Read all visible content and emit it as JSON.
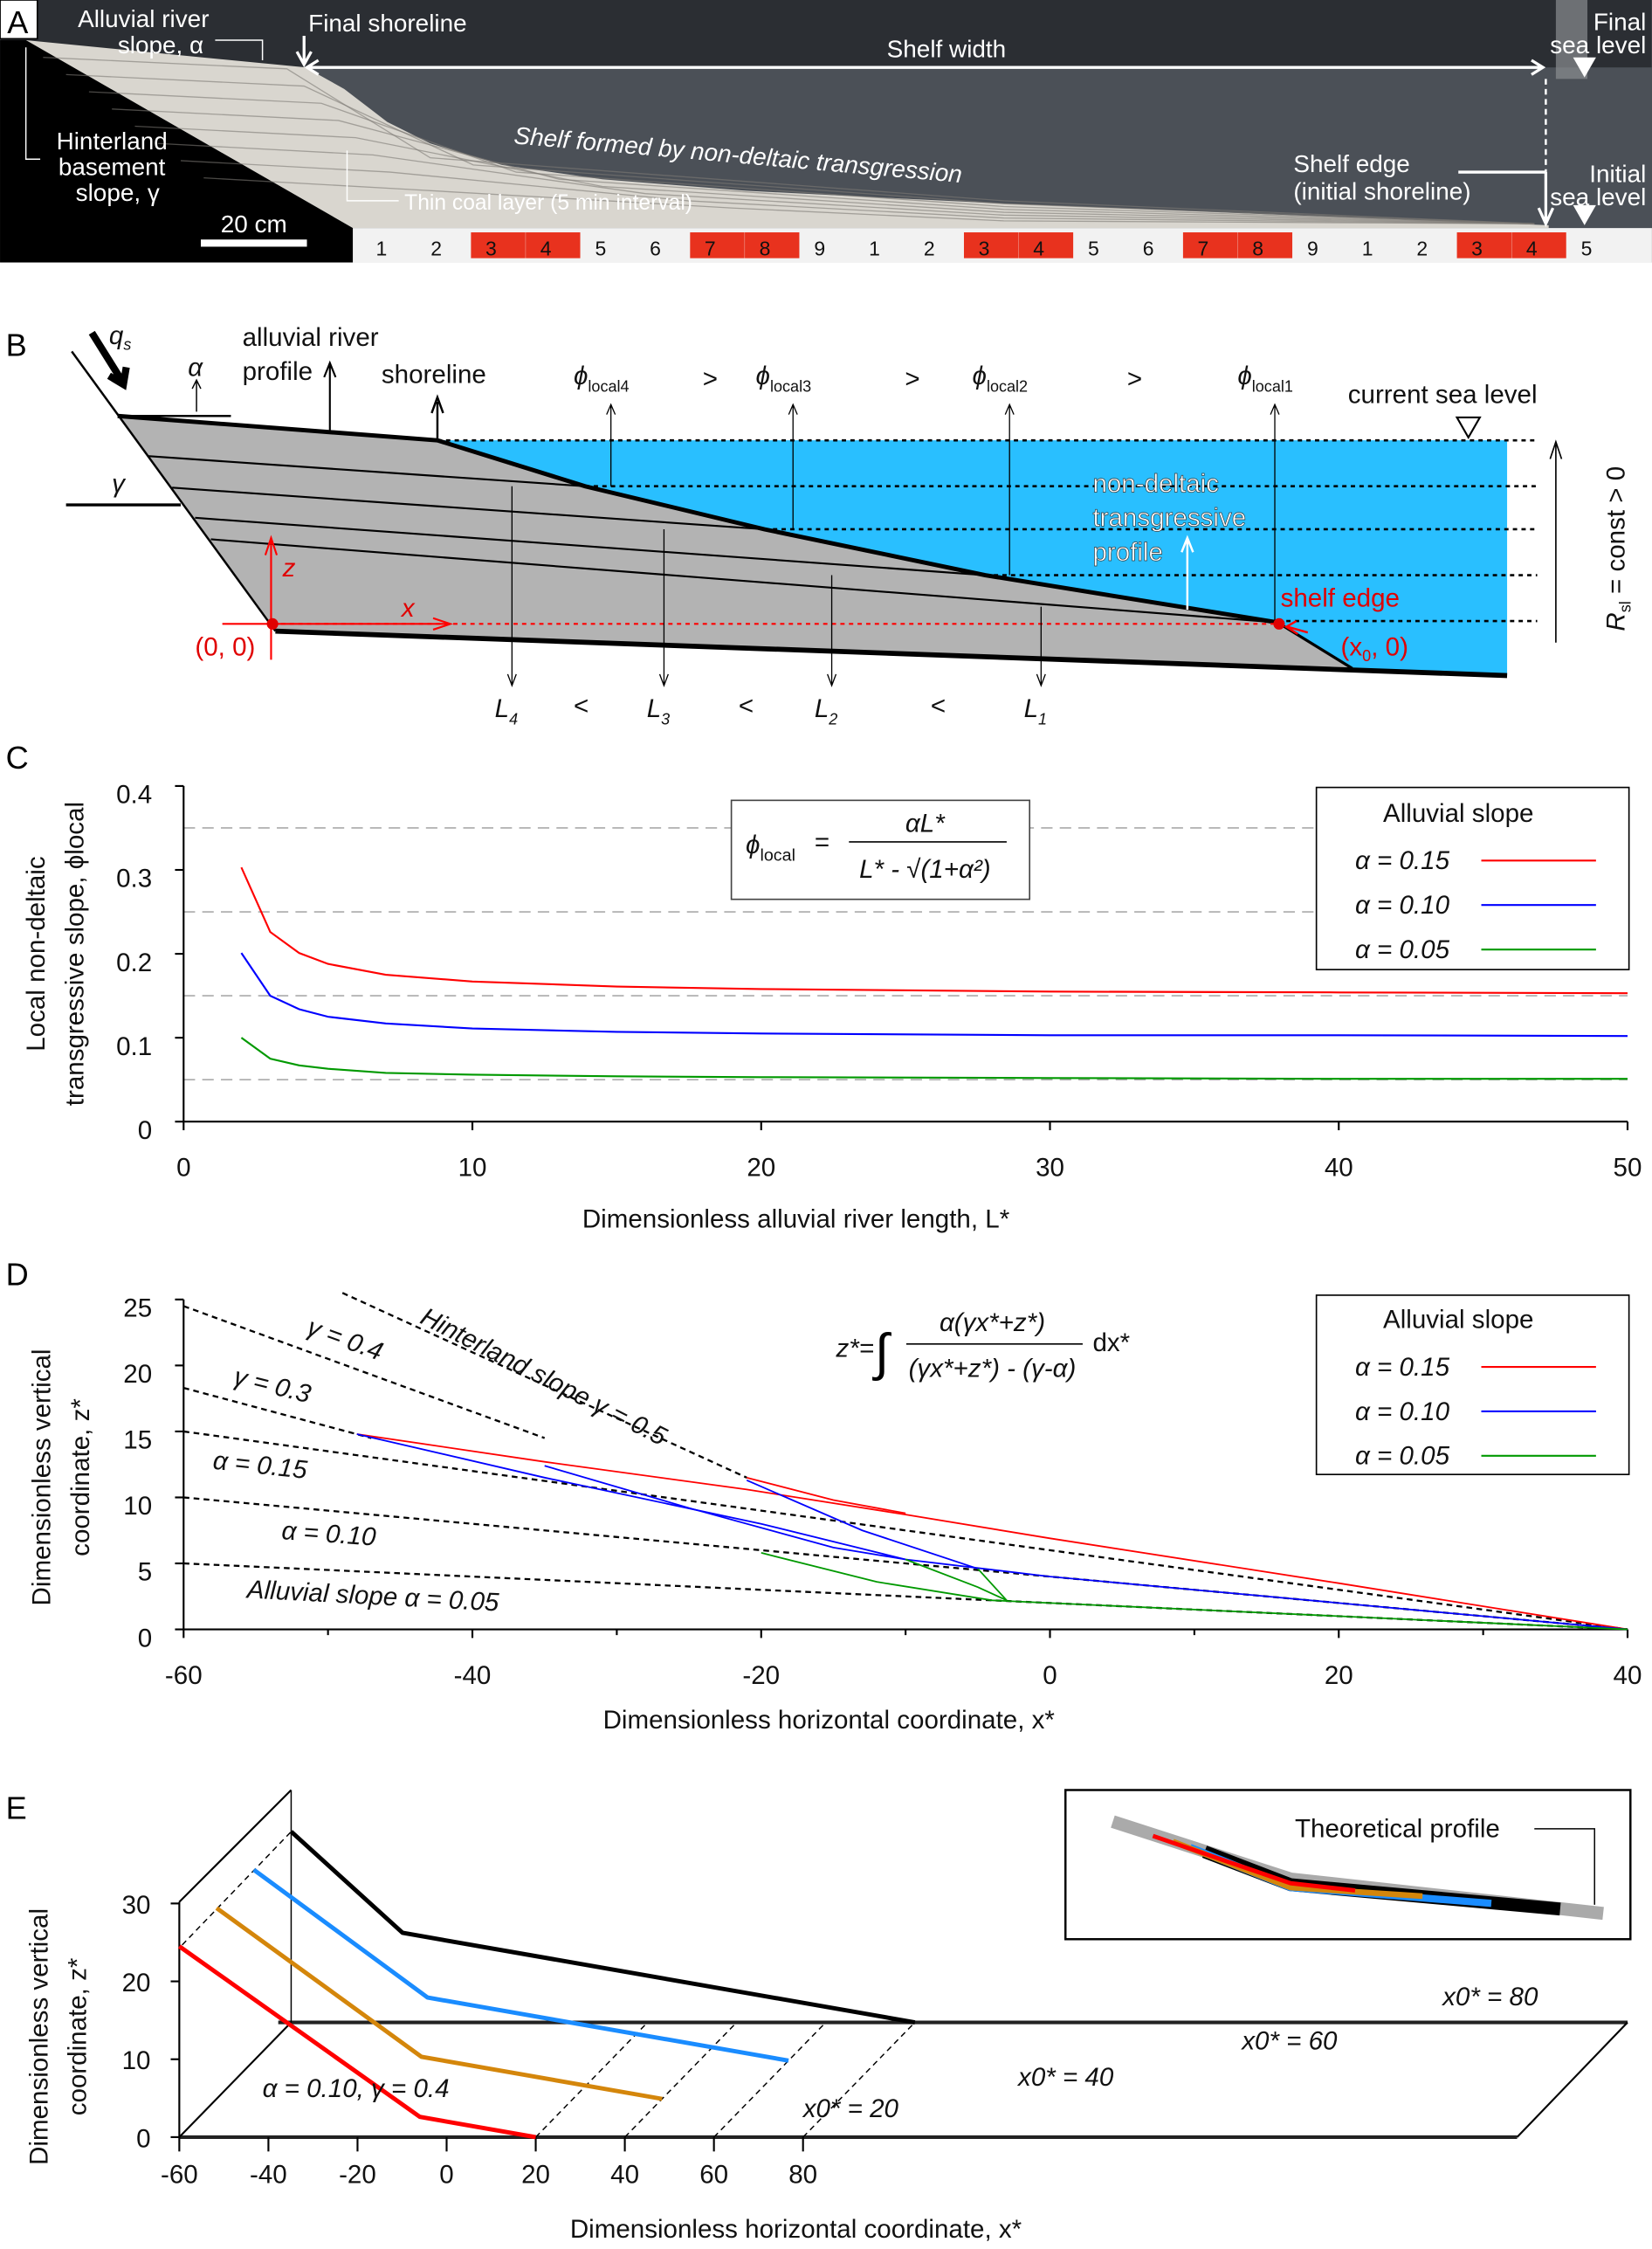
{
  "panel_labels": {
    "a": "A",
    "b": "B",
    "c": "C",
    "d": "D",
    "e": "E"
  },
  "panel_a": {
    "alluvial_slope": [
      "Alluvial river",
      "slope, α"
    ],
    "final_shoreline": "Final shoreline",
    "shelf_width": "Shelf width",
    "final_sea_level": [
      "Final",
      "sea level"
    ],
    "hinterland": [
      "Hinterland",
      "basement",
      "slope, γ"
    ],
    "shelf_formed": "Shelf formed by non-deltaic transgression",
    "thin_coal": "Thin coal layer (5 min interval)",
    "shelf_edge": [
      "Shelf edge",
      "(initial shoreline)"
    ],
    "initial_sea_level": [
      "Initial",
      "sea level"
    ],
    "scale_bar": "20 cm",
    "ruler_digits": [
      "1",
      "2",
      "3",
      "4",
      "5",
      "6",
      "7",
      "8",
      "9",
      "1",
      "2",
      "3",
      "4",
      "5",
      "6",
      "7",
      "8",
      "9",
      "1",
      "2",
      "3",
      "4",
      "5"
    ],
    "colors": {
      "sediment": "#d9d6cf",
      "water": "#4b5057",
      "sky": "#2b2e33",
      "ruler_red": "#e8321e"
    }
  },
  "panel_b": {
    "qs": "q",
    "qs_sub": "s",
    "alpha": "α",
    "gamma": "γ",
    "alluvial_profile": [
      "alluvial river",
      "profile"
    ],
    "shoreline": "shoreline",
    "phi": "ϕ",
    "phi_subs": [
      "local4",
      "local3",
      "local2",
      "local1"
    ],
    "gt": ">",
    "current_sea_level": "current sea level",
    "nondeltaic": [
      "non-deltaic",
      "transgressive",
      "profile"
    ],
    "shelf_edge": "shelf edge",
    "origin": "(0, 0)",
    "x0_label": [
      "(x",
      "0",
      ", 0)"
    ],
    "x": "x",
    "z": "z",
    "L": "L",
    "L_subs": [
      "4",
      "3",
      "2",
      "1"
    ],
    "lt": "<",
    "rsl": [
      "R",
      "sl",
      " = const > 0"
    ],
    "colors": {
      "water": "#29bfff",
      "sediment": "#b3b3b3",
      "axes": "#ff0000"
    }
  },
  "chart_data": [
    {
      "panel": "C",
      "type": "line",
      "xlabel": "Dimensionless alluvial river length, L*",
      "ylabel": [
        "Local non-deltaic",
        "transgressive slope, ϕlocal"
      ],
      "xlim": [
        0,
        50
      ],
      "ylim": [
        0,
        0.4
      ],
      "xticks": [
        "0",
        "10",
        "20",
        "30",
        "40",
        "50"
      ],
      "yticks": [
        "0",
        "0.1",
        "0.2",
        "0.3",
        "0.4"
      ],
      "grid": "dashed horizontal at 0.05, 0.15, 0.25, 0.35",
      "reference_lines": [
        0.05,
        0.15,
        0.25,
        0.35
      ],
      "formula": {
        "lhs": "ϕ",
        "lhs_sub": "local",
        "eq": "=",
        "num": "αL*",
        "den": "L* - √(1+α²)"
      },
      "legend": {
        "title": "Alluvial slope",
        "position": "top-right"
      },
      "x": [
        2,
        3,
        4,
        5,
        7,
        10,
        15,
        20,
        30,
        40,
        50
      ],
      "series": [
        {
          "name": "α = 0.15",
          "color": "#ff0000",
          "values": [
            0.303,
            0.226,
            0.201,
            0.188,
            0.175,
            0.167,
            0.161,
            0.158,
            0.155,
            0.154,
            0.153
          ]
        },
        {
          "name": "α = 0.10",
          "color": "#0000ff",
          "values": [
            0.201,
            0.15,
            0.134,
            0.125,
            0.117,
            0.111,
            0.107,
            0.105,
            0.103,
            0.103,
            0.102
          ]
        },
        {
          "name": "α = 0.05",
          "color": "#009900",
          "values": [
            0.1,
            0.075,
            0.067,
            0.063,
            0.058,
            0.056,
            0.054,
            0.053,
            0.052,
            0.051,
            0.051
          ]
        }
      ]
    },
    {
      "panel": "D",
      "type": "line",
      "xlabel": "Dimensionless horizontal coordinate, x*",
      "ylabel": [
        "Dimensionless vertical",
        "coordinate, z*"
      ],
      "xlim": [
        -60,
        40
      ],
      "ylim": [
        0,
        25
      ],
      "xticks": [
        "-60",
        "-40",
        "-20",
        "0",
        "20",
        "40"
      ],
      "yticks": [
        "0",
        "5",
        "10",
        "15",
        "20",
        "25"
      ],
      "formula": {
        "lhs": "z*=",
        "integral": "∫",
        "num": "α(γx*+z*)",
        "den": "(γx*+z*) - (γ-α)",
        "dx": "dx*"
      },
      "legend": {
        "title": "Alluvial slope",
        "position": "top-right"
      },
      "reference_lines": [
        {
          "label": "Hinterland slope γ = 0.5",
          "points": [
            [
              -49,
              25.5
            ],
            [
              -21,
              11.5
            ]
          ]
        },
        {
          "label": "γ = 0.4",
          "points": [
            [
              -60,
              24.5
            ],
            [
              -35,
              14.5
            ]
          ]
        },
        {
          "label": "γ = 0.3",
          "points": [
            [
              -60,
              18.3
            ],
            [
              -47,
              14.5
            ]
          ]
        },
        {
          "label": "α = 0.15",
          "points": [
            [
              -60,
              15
            ],
            [
              40,
              0
            ]
          ]
        },
        {
          "label": "α = 0.10",
          "points": [
            [
              -60,
              10
            ],
            [
              40,
              0
            ]
          ]
        },
        {
          "label": "Alluvial slope α = 0.05",
          "points": [
            [
              -60,
              5
            ],
            [
              40,
              0
            ]
          ]
        }
      ],
      "series": [
        {
          "name": "α = 0.15",
          "color": "#ff0000",
          "curves": [
            [
              [
                -48,
                14.8
              ],
              [
                -35,
                12.7
              ],
              [
                -21,
                10.6
              ],
              [
                -10,
                8.7
              ],
              [
                0,
                6.9
              ],
              [
                20,
                3.5
              ],
              [
                40,
                0
              ]
            ],
            [
              [
                -21,
                11.5
              ],
              [
                -15,
                9.8
              ],
              [
                -10,
                8.8
              ]
            ]
          ]
        },
        {
          "name": "α = 0.10",
          "color": "#0000ff",
          "curves": [
            [
              [
                -48,
                14.8
              ],
              [
                -35,
                11.5
              ],
              [
                -20,
                8.0
              ],
              [
                -10,
                5.3
              ],
              [
                0,
                4.0
              ],
              [
                20,
                2.0
              ],
              [
                40,
                0
              ]
            ],
            [
              [
                -35,
                12.4
              ],
              [
                -25,
                9.2
              ],
              [
                -15,
                6.2
              ],
              [
                -10,
                5.3
              ]
            ],
            [
              [
                -21,
                11.3
              ],
              [
                -13,
                7.5
              ],
              [
                -5,
                4.6
              ]
            ]
          ]
        },
        {
          "name": "α = 0.05",
          "color": "#009900",
          "curves": [
            [
              [
                -20,
                5.8
              ],
              [
                -12,
                3.6
              ],
              [
                -4,
                2.2
              ],
              [
                10,
                1.5
              ],
              [
                40,
                0
              ]
            ],
            [
              [
                -10,
                5.3
              ],
              [
                -5,
                3.2
              ],
              [
                -3,
                2.2
              ]
            ],
            [
              [
                -5,
                4.6
              ],
              [
                -3,
                2.2
              ]
            ]
          ]
        }
      ]
    },
    {
      "panel": "E",
      "type": "line",
      "xlabel": "Dimensionless horizontal coordinate, x*",
      "ylabel": [
        "Dimensionless vertical",
        "coordinate, z*"
      ],
      "xlim": [
        -60,
        90
      ],
      "ylim": [
        0,
        35
      ],
      "xticks": [
        "-60",
        "-40",
        "-20",
        "0",
        "20",
        "40",
        "60",
        "80"
      ],
      "yticks": [
        "0",
        "10",
        "20",
        "30"
      ],
      "annotation": "α = 0.10, γ = 0.4",
      "series": [
        {
          "name": "x0* = 20",
          "x0": 20,
          "color": "#ff0000",
          "points": [
            [
              -60,
              24.5
            ],
            [
              -6,
              2.6
            ],
            [
              20,
              0
            ]
          ]
        },
        {
          "name": "x0* = 40",
          "x0": 40,
          "color": "#d4860b",
          "points": [
            [
              -60,
              24.5
            ],
            [
              -14,
              5.4
            ],
            [
              40,
              0
            ]
          ]
        },
        {
          "name": "x0* = 60",
          "x0": 60,
          "color": "#1a8cff",
          "points": [
            [
              -60,
              24.5
            ],
            [
              -21,
              8.1
            ],
            [
              60,
              0
            ]
          ]
        },
        {
          "name": "x0* = 80",
          "x0": 80,
          "color": "#000000",
          "points": [
            [
              -60,
              24.5
            ],
            [
              -35,
              11.5
            ],
            [
              80,
              0
            ]
          ]
        }
      ],
      "inset": {
        "label": "Theoretical profile"
      }
    }
  ]
}
